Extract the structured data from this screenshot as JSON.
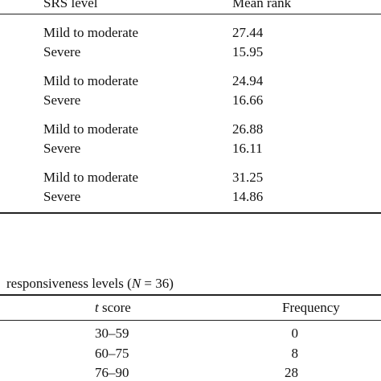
{
  "table1": {
    "headers": {
      "srs_level": "SRS level",
      "mean_rank": "Mean rank"
    },
    "groups": [
      {
        "rows": [
          {
            "level": "Mild to moderate",
            "rank": "27.44"
          },
          {
            "level": "Severe",
            "rank": "15.95"
          }
        ]
      },
      {
        "rows": [
          {
            "level": "Mild to moderate",
            "rank": "24.94"
          },
          {
            "level": "Severe",
            "rank": "16.66"
          }
        ]
      },
      {
        "rows": [
          {
            "level": "Mild to moderate",
            "rank": "26.88"
          },
          {
            "level": "Severe",
            "rank": "16.11"
          }
        ]
      },
      {
        "rows": [
          {
            "level": "Mild to moderate",
            "rank": "31.25"
          },
          {
            "level": "Severe",
            "rank": "14.86"
          }
        ]
      }
    ]
  },
  "table2": {
    "caption_prefix": "responsiveness levels (",
    "caption_n": "N",
    "caption_suffix": " = 36)",
    "headers": {
      "t_italic": "t",
      "t_rest": " score",
      "frequency": "Frequency"
    },
    "rows": [
      {
        "score": "30–59",
        "frequency": "0"
      },
      {
        "score": "60–75",
        "frequency": "8"
      },
      {
        "score": "76–90",
        "frequency": "28"
      }
    ]
  }
}
